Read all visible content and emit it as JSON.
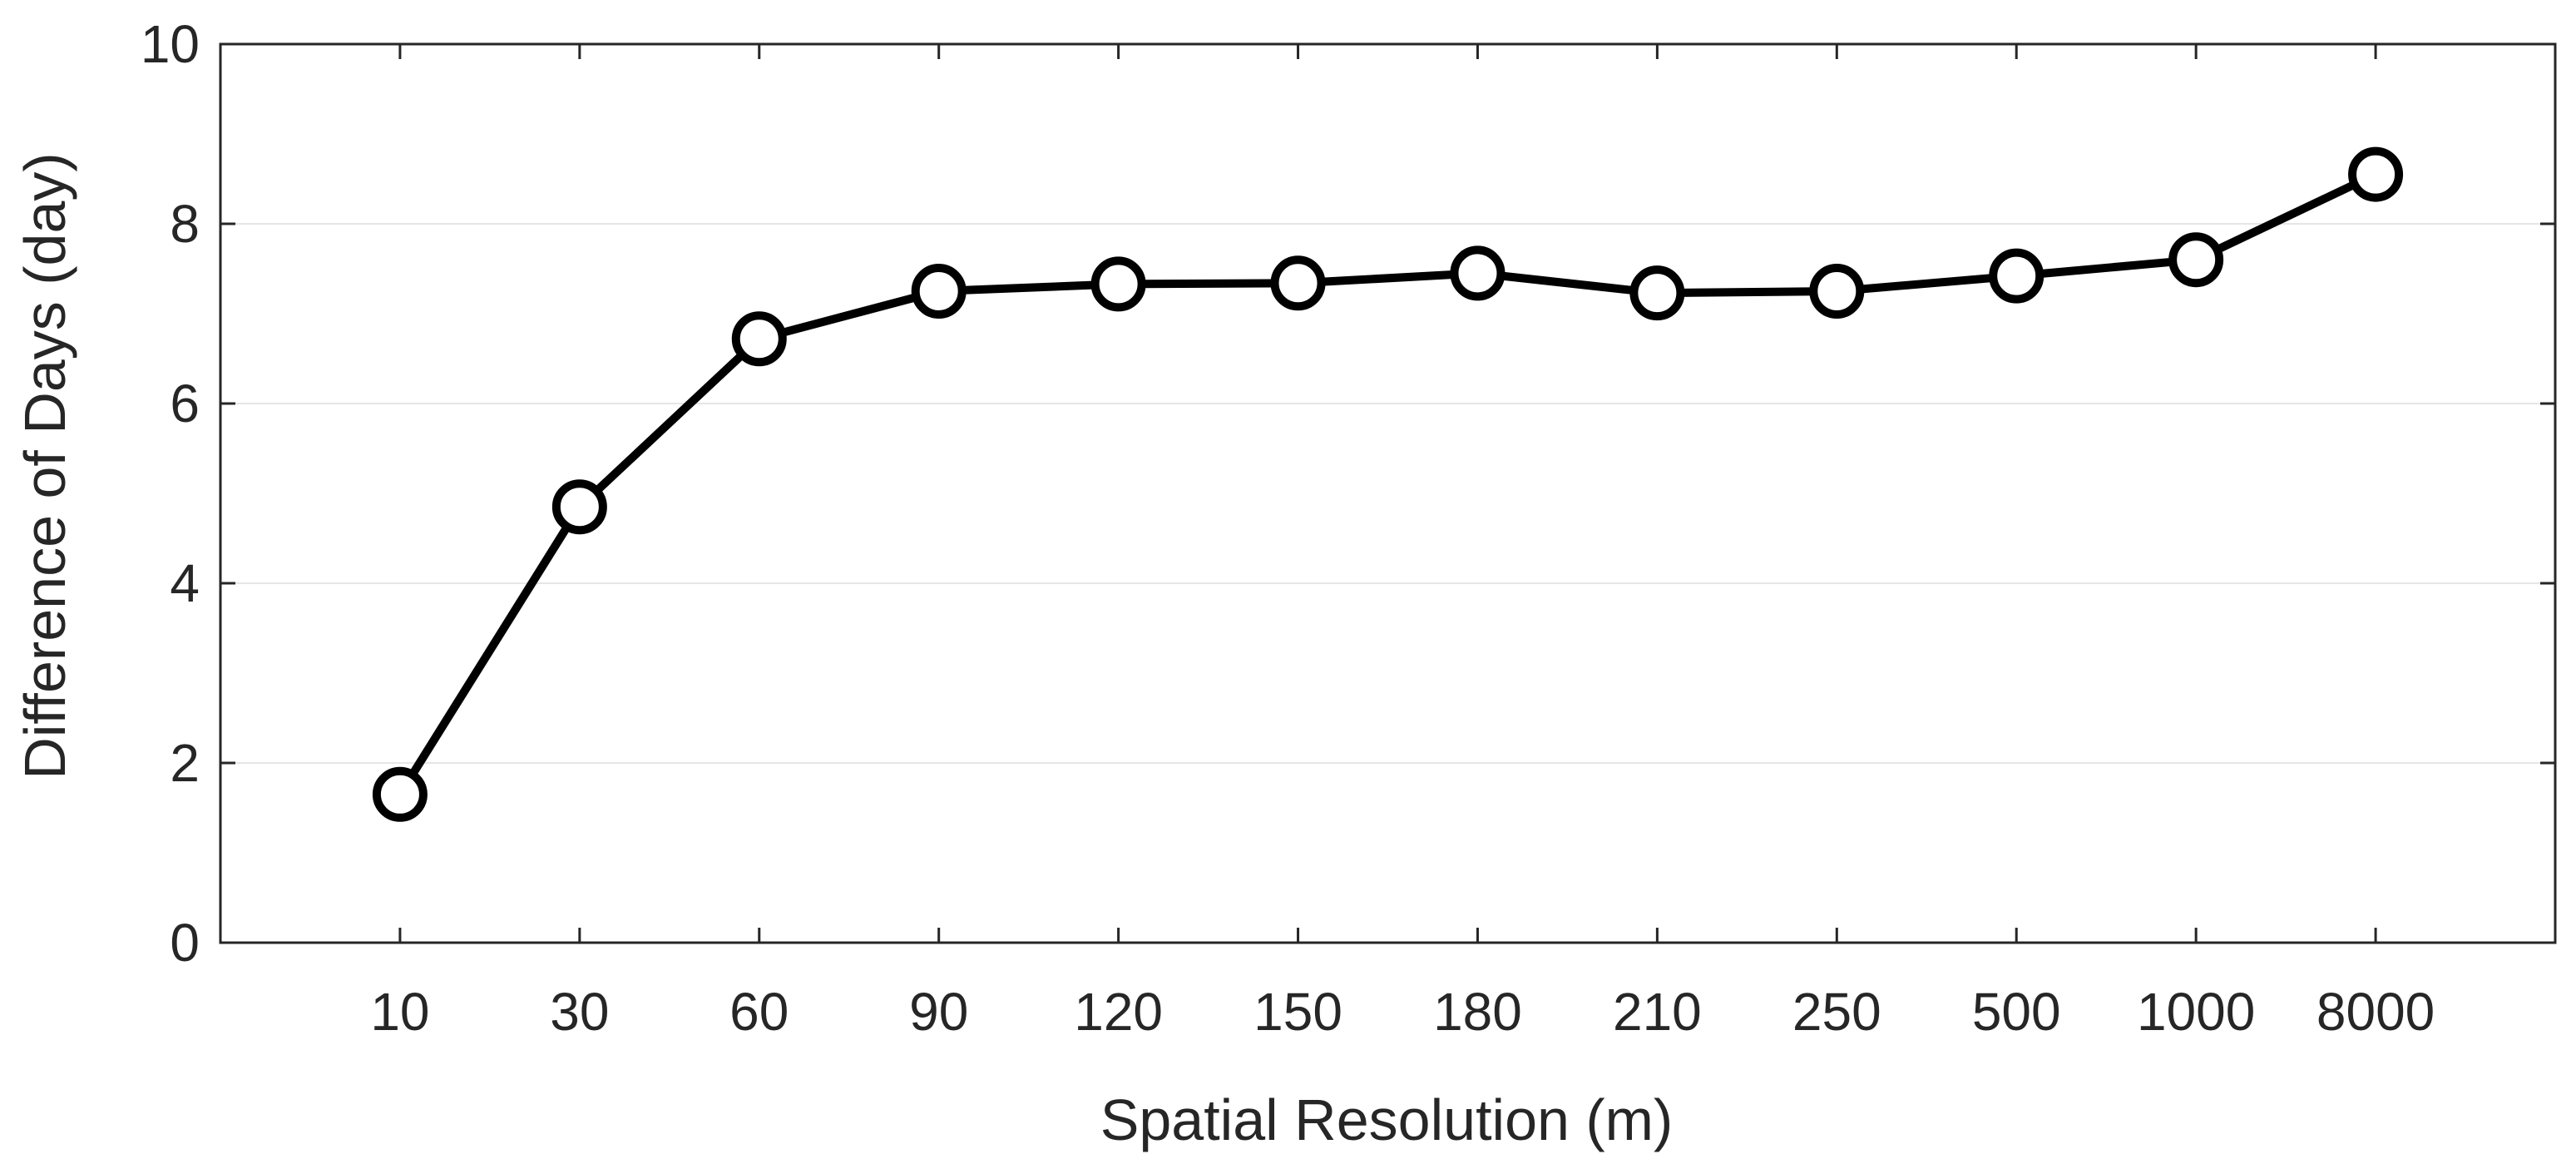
{
  "chart_data": {
    "type": "line",
    "title": "",
    "xlabel": "Spatial Resolution (m)",
    "ylabel": "Difference of Days (day)",
    "categories": [
      "10",
      "30",
      "60",
      "90",
      "120",
      "150",
      "180",
      "210",
      "250",
      "500",
      "1000",
      "8000"
    ],
    "series": [
      {
        "name": "Difference of Days",
        "values": [
          1.65,
          4.85,
          6.72,
          7.25,
          7.33,
          7.34,
          7.45,
          7.23,
          7.25,
          7.42,
          7.6,
          8.55
        ],
        "color": "#000000",
        "marker": "circle"
      }
    ],
    "ylim": [
      0,
      10
    ],
    "yticks": [
      "0",
      "2",
      "4",
      "6",
      "8",
      "10"
    ],
    "grid": "horizontal",
    "grid_color": "#e6e6e6",
    "axis_color": "#262626"
  }
}
